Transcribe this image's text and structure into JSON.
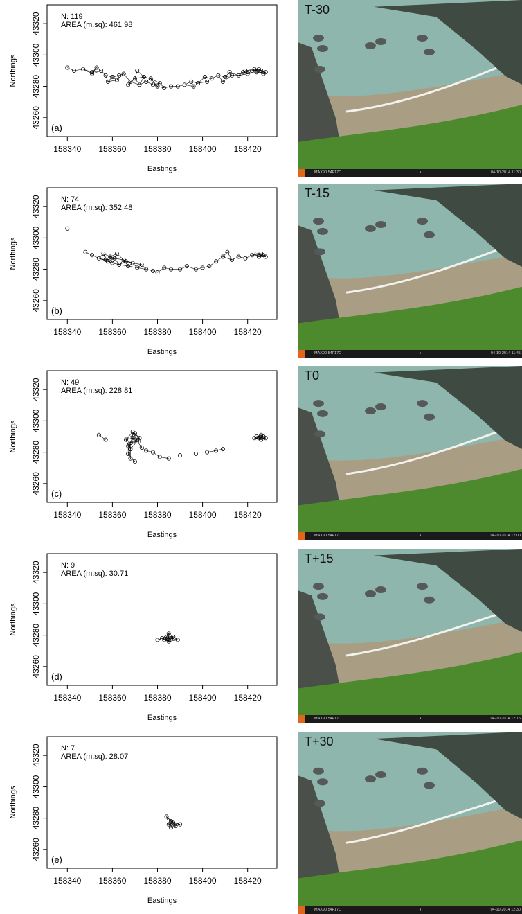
{
  "axis": {
    "xlabel": "Eastings",
    "ylabel": "Northings",
    "xticks": [
      158340,
      158360,
      158380,
      158400,
      158420
    ],
    "yticks": [
      43260,
      43280,
      43300,
      43320
    ],
    "xlim": [
      158331,
      158433
    ],
    "ylim": [
      43248,
      43332
    ]
  },
  "footer": {
    "camera": "MAX90 54F17C",
    "moon": "◐"
  },
  "chart_data": [
    {
      "type": "scatter",
      "panel": "(a)",
      "n_label": "N: 119",
      "area_label": "AREA (m.sq): 461.98",
      "photo_label": "T-30",
      "timestamp": "04-10-2014 11:30",
      "x": [
        158340,
        158343,
        158347,
        158351,
        158353,
        158355,
        158357,
        158360,
        158362,
        158365,
        158368,
        158370,
        158371,
        158372,
        158375,
        158378,
        158380,
        158383,
        158386,
        158389,
        158392,
        158395,
        158398,
        158401,
        158404,
        158407,
        158410,
        158413,
        158416,
        158418,
        158420,
        158422,
        158423,
        158424,
        158425,
        158426,
        158427,
        158428,
        158358,
        158363,
        158367,
        158374,
        158381,
        158396,
        158402,
        158412,
        158419,
        158351,
        158377,
        158409
      ],
      "y": [
        43292,
        43290,
        43291,
        43289,
        43292,
        43290,
        43287,
        43286,
        43284,
        43288,
        43283,
        43285,
        43290,
        43281,
        43283,
        43281,
        43280,
        43279,
        43280,
        43280,
        43281,
        43283,
        43282,
        43286,
        43285,
        43287,
        43286,
        43287,
        43287,
        43289,
        43288,
        43290,
        43291,
        43289,
        43291,
        43290,
        43288,
        43289,
        43283,
        43287,
        43281,
        43286,
        43282,
        43280,
        43283,
        43289,
        43290,
        43288,
        43285,
        43283
      ]
    },
    {
      "type": "scatter",
      "panel": "(b)",
      "n_label": "N: 74",
      "area_label": "AREA (m.sq): 352.48",
      "photo_label": "T-15",
      "timestamp": "04-10-2014 11:45",
      "x": [
        158340,
        158348,
        158351,
        158354,
        158356,
        158358,
        158359,
        158360,
        158361,
        158363,
        158365,
        158367,
        158369,
        158371,
        158373,
        158375,
        158378,
        158380,
        158383,
        158386,
        158390,
        158393,
        158397,
        158400,
        158403,
        158406,
        158409,
        158411,
        158413,
        158416,
        158419,
        158422,
        158424,
        158425,
        158426,
        158427,
        158428,
        158357,
        158362,
        158366
      ],
      "y": [
        43306,
        43291,
        43289,
        43287,
        43290,
        43285,
        43288,
        43284,
        43287,
        43283,
        43286,
        43282,
        43284,
        43281,
        43283,
        43280,
        43279,
        43278,
        43281,
        43280,
        43280,
        43282,
        43280,
        43281,
        43282,
        43285,
        43288,
        43291,
        43286,
        43288,
        43287,
        43289,
        43290,
        43288,
        43290,
        43289,
        43288,
        43286,
        43290,
        43285
      ]
    },
    {
      "type": "scatter",
      "panel": "(c)",
      "n_label": "N: 49",
      "area_label": "AREA (m.sq): 228.81",
      "photo_label": "T0",
      "timestamp": "04-10-2014 12:00",
      "x": [
        158354,
        158357,
        158366,
        158367,
        158367,
        158368,
        158368,
        158369,
        158369,
        158370,
        158371,
        158372,
        158373,
        158375,
        158378,
        158381,
        158385,
        158390,
        158397,
        158402,
        158406,
        158409,
        158423,
        158424,
        158425,
        158426,
        158426,
        158427,
        158428,
        158370,
        158368
      ],
      "y": [
        43291,
        43288,
        43288,
        43284,
        43279,
        43282,
        43286,
        43293,
        43289,
        43292,
        43287,
        43289,
        43283,
        43281,
        43280,
        43277,
        43276,
        43278,
        43279,
        43280,
        43281,
        43282,
        43289,
        43290,
        43289,
        43291,
        43288,
        43290,
        43289,
        43274,
        43276
      ]
    },
    {
      "type": "scatter",
      "panel": "(d)",
      "n_label": "N: 9",
      "area_label": "AREA (m.sq): 30.71",
      "photo_label": "T+15",
      "timestamp": "04-10-2014 12:15",
      "x": [
        158380,
        158382,
        158383,
        158384,
        158385,
        158386,
        158387,
        158389,
        158385
      ],
      "y": [
        43277,
        43278,
        43277,
        43279,
        43281,
        43278,
        43279,
        43277,
        43276
      ]
    },
    {
      "type": "scatter",
      "panel": "(e)",
      "n_label": "N: 7",
      "area_label": "AREA (m.sq): 28.07",
      "photo_label": "T+30",
      "timestamp": "04-10-2014 12:30",
      "x": [
        158384,
        158385,
        158386,
        158387,
        158388,
        158390,
        158386
      ],
      "y": [
        43281,
        43276,
        43274,
        43277,
        43275,
        43276,
        43278
      ]
    }
  ]
}
